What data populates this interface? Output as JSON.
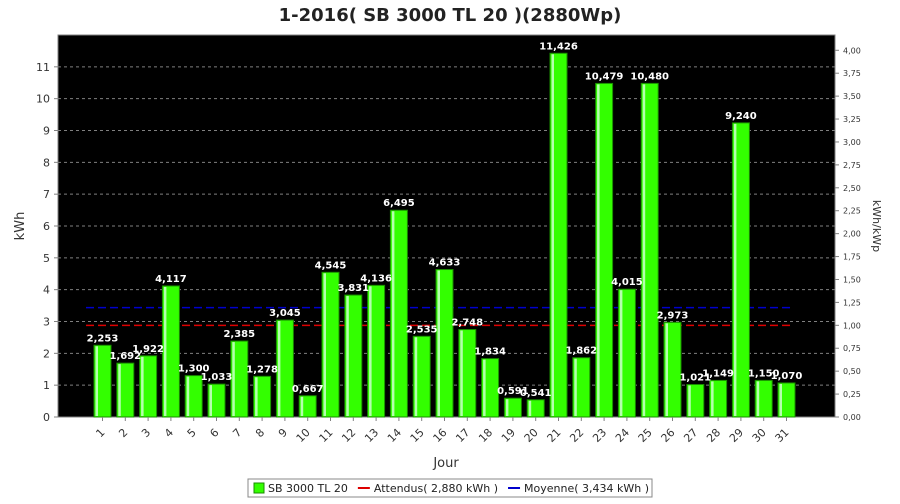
{
  "chart_data": {
    "type": "bar",
    "title": "1-2016( SB 3000 TL 20 )(2880Wp)",
    "xlabel": "Jour",
    "ylabel": "kWh",
    "y2label": "kWh/kWp",
    "categories": [
      "1",
      "2",
      "3",
      "4",
      "5",
      "6",
      "7",
      "8",
      "9",
      "10",
      "11",
      "12",
      "13",
      "14",
      "15",
      "16",
      "17",
      "18",
      "19",
      "20",
      "21",
      "22",
      "23",
      "24",
      "25",
      "26",
      "27",
      "28",
      "29",
      "30",
      "31"
    ],
    "series": [
      {
        "name": "SB 3000 TL 20",
        "values": [
          2.253,
          1.692,
          1.922,
          4.117,
          1.3,
          1.033,
          2.385,
          1.278,
          3.045,
          0.667,
          4.545,
          3.831,
          4.136,
          6.495,
          2.535,
          4.633,
          2.748,
          1.834,
          0.591,
          0.541,
          11.426,
          1.862,
          10.479,
          4.015,
          10.48,
          2.973,
          1.021,
          1.149,
          9.24,
          1.15,
          1.07
        ],
        "value_labels": [
          "2,253",
          "1,692",
          "1,922",
          "4,117",
          "1,300",
          "1,033",
          "2,385",
          "1,278",
          "3,045",
          "0,667",
          "4,545",
          "3,831",
          "4,136",
          "6,495",
          "2,535",
          "4,633",
          "2,748",
          "1,834",
          "0,591",
          "0,541",
          "11,426",
          "1,862",
          "10,479",
          "4,015",
          "10,480",
          "2,973",
          "1,021",
          "1,149",
          "9,240",
          "1,150",
          "1,070"
        ],
        "color": "#33ff00"
      }
    ],
    "reference_lines": [
      {
        "name": "Attendus",
        "value": 2.88,
        "color": "#dd0000"
      },
      {
        "name": "Moyenne",
        "value": 3.434,
        "color": "#0000cc"
      }
    ],
    "legend_items": [
      {
        "text": "SB 3000 TL 20",
        "color": "#33ff00"
      },
      {
        "text": "Attendus( 2,880 kWh )",
        "color": "#dd0000"
      },
      {
        "text": "Moyenne( 3,434 kWh )",
        "color": "#0000cc"
      }
    ],
    "ylim": [
      0,
      12
    ],
    "y_ticks": [
      0,
      1,
      2,
      3,
      4,
      5,
      6,
      7,
      8,
      9,
      10,
      11
    ],
    "y2lim": [
      0,
      4.1667
    ],
    "y2_ticks": [
      "0,00",
      "0,25",
      "0,50",
      "0,75",
      "1,00",
      "1,25",
      "1,50",
      "1,75",
      "2,00",
      "2,25",
      "2,50",
      "2,75",
      "3,00",
      "3,25",
      "3,50",
      "3,75",
      "4,00"
    ],
    "grid": true,
    "legend_position": "bottom",
    "plot_background": "#000000",
    "grid_color": "#808080"
  }
}
